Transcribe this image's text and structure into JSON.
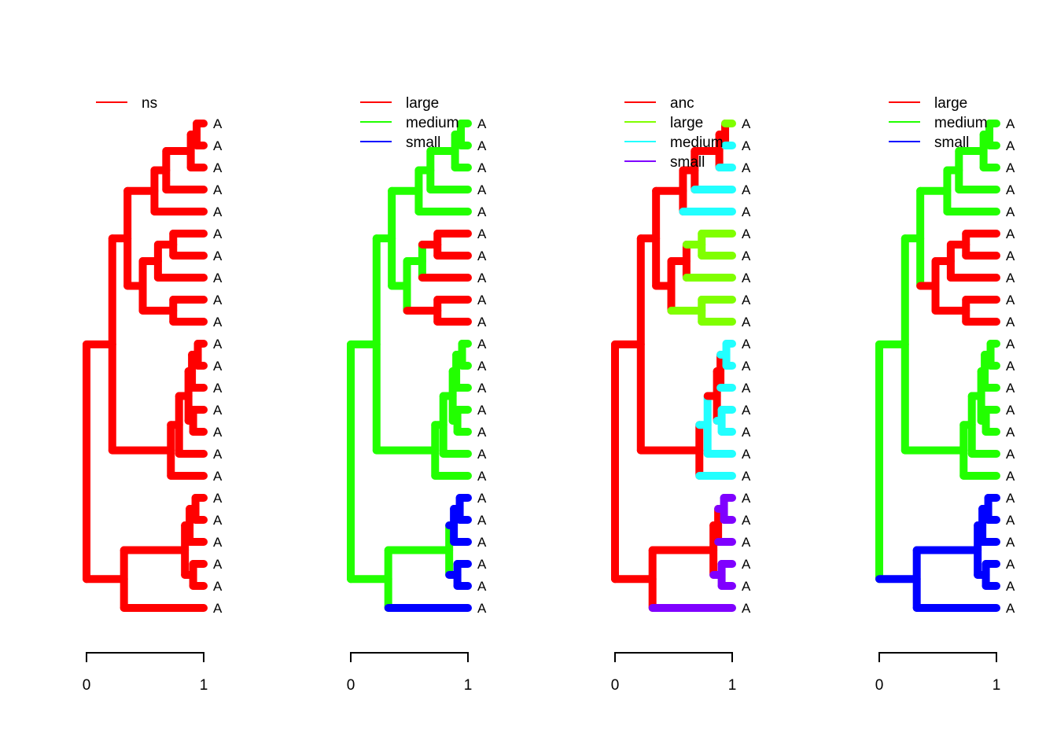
{
  "tip_label": "A",
  "axis": {
    "min_label": "0",
    "max_label": "1"
  },
  "tree": {
    "id": "root",
    "x": 0,
    "c": [
      {
        "id": "A",
        "x": 0.22,
        "c": [
          {
            "id": "A1",
            "x": 0.35,
            "c": [
              {
                "id": "A1a",
                "x": 0.58,
                "c": [
                  {
                    "id": "n14",
                    "x": 0.68,
                    "c": [
                      {
                        "id": "n13",
                        "x": 0.89,
                        "c": [
                          {
                            "id": "n12",
                            "x": 0.94,
                            "c": [
                              {
                                "id": "t1",
                                "x": 1
                              },
                              {
                                "id": "t2",
                                "x": 1
                              }
                            ]
                          },
                          {
                            "id": "t3",
                            "x": 1
                          }
                        ]
                      },
                      {
                        "id": "t4",
                        "x": 1
                      }
                    ]
                  },
                  {
                    "id": "t5",
                    "x": 1
                  }
                ]
              },
              {
                "id": "A1b",
                "x": 0.48,
                "c": [
                  {
                    "id": "n678",
                    "x": 0.61,
                    "c": [
                      {
                        "id": "n67",
                        "x": 0.74,
                        "c": [
                          {
                            "id": "t6",
                            "x": 1
                          },
                          {
                            "id": "t7",
                            "x": 1
                          }
                        ]
                      },
                      {
                        "id": "t8",
                        "x": 1
                      }
                    ]
                  },
                  {
                    "id": "n910",
                    "x": 0.74,
                    "c": [
                      {
                        "id": "t9",
                        "x": 1
                      },
                      {
                        "id": "t10",
                        "x": 1
                      }
                    ]
                  }
                ]
              }
            ]
          },
          {
            "id": "A2",
            "x": 0.72,
            "c": [
              {
                "id": "n1116",
                "x": 0.79,
                "c": [
                  {
                    "id": "n1115",
                    "x": 0.87,
                    "c": [
                      {
                        "id": "n1113",
                        "x": 0.9,
                        "c": [
                          {
                            "id": "n1112",
                            "x": 0.95,
                            "c": [
                              {
                                "id": "t11",
                                "x": 1
                              },
                              {
                                "id": "t12",
                                "x": 1
                              }
                            ]
                          },
                          {
                            "id": "t13",
                            "x": 1
                          }
                        ]
                      },
                      {
                        "id": "n1415",
                        "x": 0.91,
                        "c": [
                          {
                            "id": "t14",
                            "x": 1
                          },
                          {
                            "id": "t15",
                            "x": 1
                          }
                        ]
                      }
                    ]
                  },
                  {
                    "id": "t16",
                    "x": 1
                  }
                ]
              },
              {
                "id": "t17",
                "x": 1
              }
            ]
          }
        ]
      },
      {
        "id": "B",
        "x": 0.32,
        "c": [
          {
            "id": "n1822",
            "x": 0.84,
            "c": [
              {
                "id": "n1820",
                "x": 0.88,
                "c": [
                  {
                    "id": "n1819",
                    "x": 0.93,
                    "c": [
                      {
                        "id": "t18",
                        "x": 1
                      },
                      {
                        "id": "t19",
                        "x": 1
                      }
                    ]
                  },
                  {
                    "id": "t20",
                    "x": 1
                  }
                ]
              },
              {
                "id": "n2122",
                "x": 0.91,
                "c": [
                  {
                    "id": "t21",
                    "x": 1
                  },
                  {
                    "id": "t22",
                    "x": 1
                  }
                ]
              }
            ]
          },
          {
            "id": "t23",
            "x": 1
          }
        ]
      }
    ]
  },
  "panels": [
    {
      "legend": [
        {
          "label": "ns",
          "color": "#ff0000"
        }
      ],
      "default": "#ff0000",
      "overrides": {}
    },
    {
      "legend": [
        {
          "label": "large",
          "color": "#ff0000"
        },
        {
          "label": "medium",
          "color": "#22ff00"
        },
        {
          "label": "small",
          "color": "#0000ff"
        }
      ],
      "default": "#22ff00",
      "overrides": {
        "n67": "#ff0000",
        "t8": "#ff0000",
        "n910": "#ff0000",
        "n1820": "#0000ff",
        "n2122": "#0000ff",
        "t23": "#0000ff"
      }
    },
    {
      "legend": [
        {
          "label": "anc",
          "color": "#ff0000"
        },
        {
          "label": "large",
          "color": "#80ff00"
        },
        {
          "label": "medium",
          "color": "#22ffff"
        },
        {
          "label": "small",
          "color": "#7f00ff"
        }
      ],
      "default": "#ff0000",
      "overrides": {
        "t1": "#80ff00",
        "t2": "#22ffff",
        "t3": "#22ffff",
        "t4": "#22ffff",
        "t5": "#22ffff",
        "n67": "#80ff00",
        "t8": "#80ff00",
        "n910": "#80ff00",
        "n1116": "#22ffff",
        "n1115": "#ff0000",
        "n1113": "#ff0000",
        "n1112": "#22ffff",
        "t13": "#22ffff",
        "n1415": "#22ffff",
        "t16": "#22ffff",
        "t17": "#22ffff",
        "n1822": "#ff0000",
        "n1820": "#ff0000",
        "n1819": "#7f00ff",
        "t20": "#7f00ff",
        "n2122": "#7f00ff",
        "t23": "#7f00ff"
      }
    },
    {
      "legend": [
        {
          "label": "large",
          "color": "#ff0000"
        },
        {
          "label": "medium",
          "color": "#22ff00"
        },
        {
          "label": "small",
          "color": "#0000ff"
        }
      ],
      "default": "#22ff00",
      "overrides": {
        "A1b": "#ff0000",
        "B": "#0000ff"
      }
    }
  ]
}
